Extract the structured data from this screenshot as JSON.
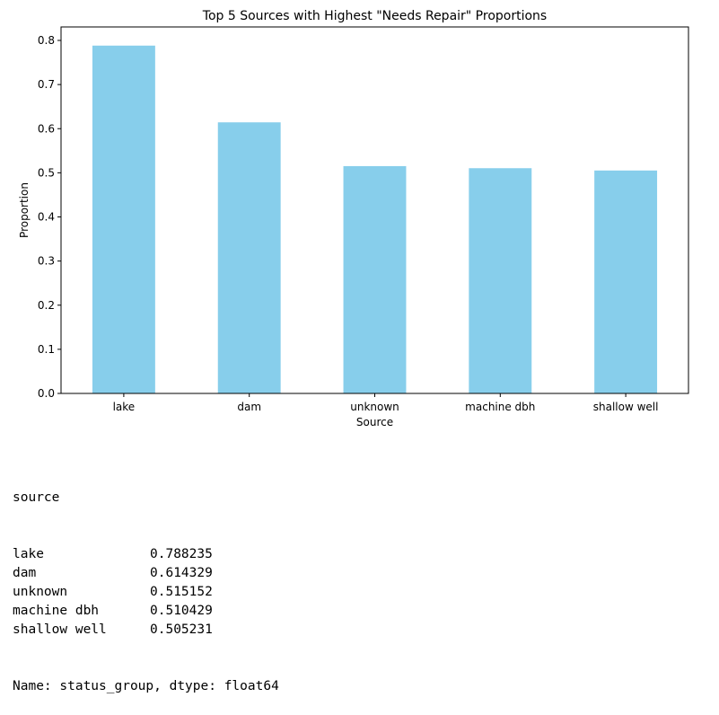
{
  "chart_data": {
    "type": "bar",
    "title": "Top 5 Sources with Highest \"Needs Repair\" Proportions",
    "xlabel": "Source",
    "ylabel": "Proportion",
    "categories": [
      "lake",
      "dam",
      "unknown",
      "machine dbh",
      "shallow well"
    ],
    "values": [
      0.788235,
      0.614329,
      0.515152,
      0.510429,
      0.505231
    ],
    "ylim": [
      0,
      0.8
    ],
    "yticks": [
      "0.0",
      "0.1",
      "0.2",
      "0.3",
      "0.4",
      "0.5",
      "0.6",
      "0.7",
      "0.8"
    ],
    "bar_color": "#87ceeb",
    "grid": false,
    "legend": false
  },
  "output": {
    "header": "source",
    "rows": [
      {
        "key": "lake",
        "value": "0.788235"
      },
      {
        "key": "dam",
        "value": "0.614329"
      },
      {
        "key": "unknown",
        "value": "0.515152"
      },
      {
        "key": "machine dbh",
        "value": "0.510429"
      },
      {
        "key": "shallow well",
        "value": "0.505231"
      }
    ],
    "footer": "Name: status_group, dtype: float64"
  }
}
